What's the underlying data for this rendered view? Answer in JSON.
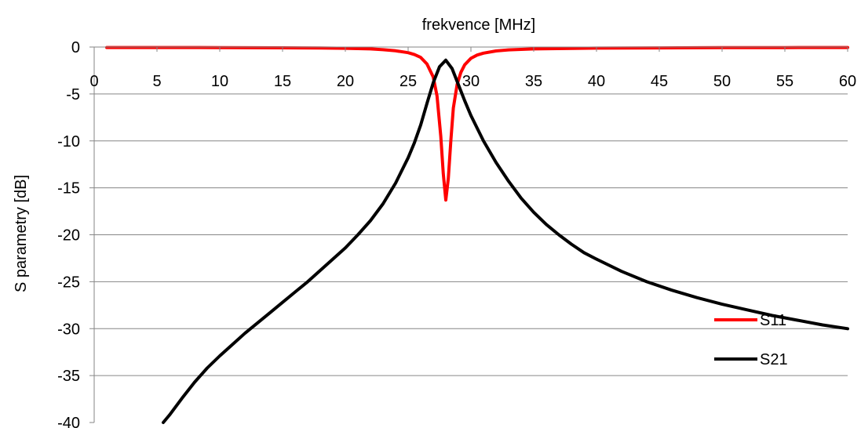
{
  "chart_data": {
    "type": "line",
    "title": "",
    "xlabel": "frekvence [MHz]",
    "ylabel": "S parametry [dB]",
    "xlim": [
      0,
      60
    ],
    "ylim": [
      -40,
      0
    ],
    "x_ticks": [
      0,
      5,
      10,
      15,
      20,
      25,
      30,
      35,
      40,
      45,
      50,
      55,
      60
    ],
    "y_ticks": [
      0,
      -5,
      -10,
      -15,
      -20,
      -25,
      -30,
      -35,
      -40
    ],
    "grid": true,
    "x_axis_crosses_at": 0,
    "x_axis_position": "top",
    "legend_position": "right",
    "series": [
      {
        "name": "S11",
        "color": "#ff0000",
        "x": [
          1,
          5,
          10,
          15,
          18,
          20,
          22,
          23,
          24,
          25,
          25.5,
          26,
          26.5,
          27,
          27.3,
          27.6,
          27.8,
          28,
          28.2,
          28.4,
          28.6,
          28.9,
          29.2,
          29.5,
          30,
          30.5,
          31,
          32,
          33,
          35,
          40,
          45,
          50,
          55,
          60
        ],
        "y": [
          -0.05,
          -0.05,
          -0.06,
          -0.08,
          -0.1,
          -0.13,
          -0.2,
          -0.28,
          -0.4,
          -0.6,
          -0.8,
          -1.1,
          -1.8,
          -3.2,
          -5.2,
          -9.5,
          -13.5,
          -16.3,
          -14.0,
          -10.0,
          -6.5,
          -4.0,
          -2.7,
          -1.9,
          -1.2,
          -0.85,
          -0.65,
          -0.42,
          -0.3,
          -0.2,
          -0.12,
          -0.09,
          -0.07,
          -0.06,
          -0.05
        ]
      },
      {
        "name": "S21",
        "color": "#000000",
        "x": [
          5.5,
          6,
          7,
          8,
          9,
          10,
          11,
          12,
          13,
          14,
          15,
          16,
          17,
          18,
          19,
          20,
          21,
          22,
          23,
          24,
          25,
          25.5,
          26,
          26.5,
          27,
          27.5,
          28,
          28.5,
          29,
          29.5,
          30,
          31,
          32,
          33,
          34,
          35,
          36,
          37,
          38,
          39,
          40,
          42,
          44,
          46,
          48,
          50,
          52,
          54,
          56,
          58,
          60
        ],
        "y": [
          -40,
          -39.2,
          -37.4,
          -35.7,
          -34.2,
          -32.9,
          -31.7,
          -30.5,
          -29.4,
          -28.3,
          -27.2,
          -26.1,
          -25.0,
          -23.8,
          -22.6,
          -21.4,
          -20.0,
          -18.5,
          -16.7,
          -14.5,
          -11.8,
          -10.2,
          -8.3,
          -6.0,
          -3.8,
          -2.1,
          -1.4,
          -2.3,
          -4.0,
          -5.7,
          -7.3,
          -10.0,
          -12.3,
          -14.3,
          -16.1,
          -17.6,
          -18.9,
          -20.0,
          -21.0,
          -21.9,
          -22.6,
          -23.9,
          -25.0,
          -25.9,
          -26.7,
          -27.4,
          -28.0,
          -28.6,
          -29.1,
          -29.6,
          -30.0
        ]
      }
    ]
  }
}
